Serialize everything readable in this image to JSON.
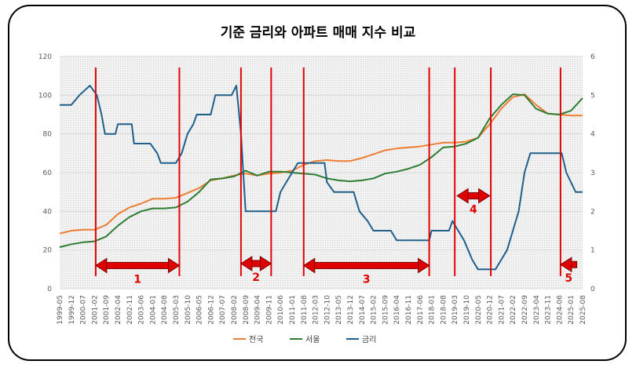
{
  "chart_data": {
    "type": "line",
    "title": "기준 금리와 아파트 매매 지수 비교",
    "x_labels": [
      "1999-05",
      "1999-12",
      "2000-07",
      "2001-02",
      "2001-09",
      "2002-04",
      "2002-11",
      "2003-06",
      "2004-01",
      "2004-08",
      "2005-03",
      "2005-10",
      "2006-05",
      "2006-12",
      "2007-07",
      "2008-02",
      "2008-09",
      "2009-04",
      "2009-11",
      "2010-06",
      "2011-01",
      "2011-08",
      "2012-03",
      "2012-10",
      "2013-05",
      "2013-12",
      "2014-07",
      "2015-02",
      "2015-09",
      "2016-04",
      "2016-11",
      "2017-06",
      "2018-01",
      "2018-08",
      "2019-03",
      "2019-10",
      "2020-05",
      "2020-12",
      "2021-07",
      "2022-02",
      "2022-09",
      "2023-04",
      "2023-11",
      "2024-06",
      "2025-01",
      "2025-08"
    ],
    "y_left": {
      "min": 0,
      "max": 120,
      "ticks": [
        0,
        20,
        40,
        60,
        80,
        100,
        120
      ]
    },
    "y_right": {
      "min": 0,
      "max": 6,
      "ticks": [
        0,
        1,
        2,
        3,
        4,
        5,
        6
      ]
    },
    "grid": true,
    "legend_position": "bottom",
    "series": [
      {
        "name": "전국",
        "axis": "left",
        "color": "#ed7d31",
        "points": [
          [
            0,
            28.5
          ],
          [
            1,
            30
          ],
          [
            2,
            30.5
          ],
          [
            3,
            30.5
          ],
          [
            4,
            33
          ],
          [
            5,
            38.5
          ],
          [
            6,
            42
          ],
          [
            7,
            44
          ],
          [
            8,
            46.5
          ],
          [
            9,
            46.5
          ],
          [
            10,
            47
          ],
          [
            11,
            49.5
          ],
          [
            12,
            52
          ],
          [
            13,
            56
          ],
          [
            14,
            57
          ],
          [
            15,
            58.5
          ],
          [
            16,
            59.5
          ],
          [
            17,
            58.5
          ],
          [
            18,
            59.5
          ],
          [
            19,
            60
          ],
          [
            20,
            61
          ],
          [
            21,
            64
          ],
          [
            22,
            66
          ],
          [
            23,
            66.5
          ],
          [
            24,
            66
          ],
          [
            25,
            66
          ],
          [
            26,
            67.5
          ],
          [
            27,
            69.5
          ],
          [
            28,
            71.5
          ],
          [
            29,
            72.5
          ],
          [
            30,
            73
          ],
          [
            31,
            73.5
          ],
          [
            32,
            74.5
          ],
          [
            33,
            75.5
          ],
          [
            34,
            75.5
          ],
          [
            35,
            76
          ],
          [
            36,
            78
          ],
          [
            37,
            85
          ],
          [
            38,
            93
          ],
          [
            39,
            99
          ],
          [
            40,
            100.5
          ],
          [
            41,
            95
          ],
          [
            42,
            90.5
          ],
          [
            43,
            90
          ],
          [
            44,
            89.5
          ],
          [
            45,
            89.5
          ]
        ]
      },
      {
        "name": "서울",
        "axis": "left",
        "color": "#2e7d32",
        "points": [
          [
            0,
            21.5
          ],
          [
            1,
            23
          ],
          [
            2,
            24
          ],
          [
            3,
            24.5
          ],
          [
            4,
            27
          ],
          [
            5,
            32.5
          ],
          [
            6,
            37
          ],
          [
            7,
            40
          ],
          [
            8,
            41.5
          ],
          [
            9,
            41.5
          ],
          [
            10,
            42
          ],
          [
            11,
            45
          ],
          [
            12,
            50
          ],
          [
            13,
            56.5
          ],
          [
            14,
            57
          ],
          [
            15,
            58
          ],
          [
            16,
            61
          ],
          [
            17,
            58.5
          ],
          [
            18,
            60.5
          ],
          [
            19,
            60.5
          ],
          [
            20,
            60
          ],
          [
            21,
            59.5
          ],
          [
            22,
            59
          ],
          [
            23,
            57
          ],
          [
            24,
            56
          ],
          [
            25,
            55.5
          ],
          [
            26,
            56
          ],
          [
            27,
            57
          ],
          [
            28,
            59.5
          ],
          [
            29,
            60.5
          ],
          [
            30,
            62
          ],
          [
            31,
            64
          ],
          [
            32,
            68
          ],
          [
            33,
            73
          ],
          [
            34,
            73.5
          ],
          [
            35,
            75
          ],
          [
            36,
            78
          ],
          [
            37,
            88
          ],
          [
            38,
            95
          ],
          [
            39,
            100.5
          ],
          [
            40,
            100
          ],
          [
            41,
            93
          ],
          [
            42,
            90.5
          ],
          [
            43,
            90
          ],
          [
            44,
            92
          ],
          [
            45,
            98.5
          ]
        ]
      },
      {
        "name": "금리",
        "axis": "right",
        "color": "#1f5f8b",
        "points": [
          [
            0,
            4.75
          ],
          [
            1,
            4.75
          ],
          [
            1.7,
            5
          ],
          [
            2.6,
            5.25
          ],
          [
            3.2,
            5
          ],
          [
            3.6,
            4.5
          ],
          [
            3.9,
            4
          ],
          [
            4.8,
            4
          ],
          [
            5,
            4.25
          ],
          [
            6.2,
            4.25
          ],
          [
            6.4,
            3.75
          ],
          [
            7.8,
            3.75
          ],
          [
            8.4,
            3.5
          ],
          [
            8.7,
            3.25
          ],
          [
            10,
            3.25
          ],
          [
            10.5,
            3.5
          ],
          [
            11,
            4
          ],
          [
            11.5,
            4.25
          ],
          [
            11.8,
            4.5
          ],
          [
            13,
            4.5
          ],
          [
            13.4,
            5
          ],
          [
            14.8,
            5
          ],
          [
            15.2,
            5.25
          ],
          [
            15.6,
            4
          ],
          [
            16,
            2
          ],
          [
            18,
            2
          ],
          [
            18.6,
            2
          ],
          [
            19,
            2.5
          ],
          [
            19.5,
            2.75
          ],
          [
            20,
            3
          ],
          [
            20.5,
            3.25
          ],
          [
            22.8,
            3.25
          ],
          [
            23,
            2.75
          ],
          [
            23.6,
            2.5
          ],
          [
            25.3,
            2.5
          ],
          [
            25.8,
            2
          ],
          [
            26.5,
            1.75
          ],
          [
            27,
            1.5
          ],
          [
            28.5,
            1.5
          ],
          [
            29,
            1.25
          ],
          [
            30.5,
            1.25
          ],
          [
            31.8,
            1.25
          ],
          [
            32,
            1.5
          ],
          [
            33.5,
            1.5
          ],
          [
            33.8,
            1.75
          ],
          [
            34.3,
            1.5
          ],
          [
            34.8,
            1.25
          ],
          [
            35.5,
            0.75
          ],
          [
            36,
            0.5
          ],
          [
            37.5,
            0.5
          ],
          [
            38,
            0.75
          ],
          [
            38.5,
            1
          ],
          [
            39,
            1.5
          ],
          [
            39.5,
            2
          ],
          [
            40,
            3
          ],
          [
            40.5,
            3.5
          ],
          [
            42.4,
            3.5
          ],
          [
            43.2,
            3.5
          ],
          [
            43.6,
            3
          ],
          [
            44,
            2.75
          ],
          [
            44.4,
            2.5
          ],
          [
            45,
            2.5
          ]
        ]
      }
    ],
    "markers": {
      "color": "#e00000",
      "lines_x": [
        3.1,
        10.3,
        15.6,
        18.2,
        21.0,
        31.8,
        34.0,
        37.1,
        43.1
      ],
      "arrows": [
        {
          "from": 3.1,
          "to": 10.3,
          "y": 12,
          "label": "1"
        },
        {
          "from": 15.6,
          "to": 18.2,
          "y": 13,
          "label": "2"
        },
        {
          "from": 21.0,
          "to": 31.8,
          "y": 12,
          "label": "3"
        },
        {
          "from": 34.2,
          "to": 37.0,
          "y": 48,
          "label": "4"
        },
        {
          "from": 43.1,
          "to": 44.5,
          "y": 12.5,
          "label": "5",
          "left_only": true
        }
      ]
    }
  }
}
